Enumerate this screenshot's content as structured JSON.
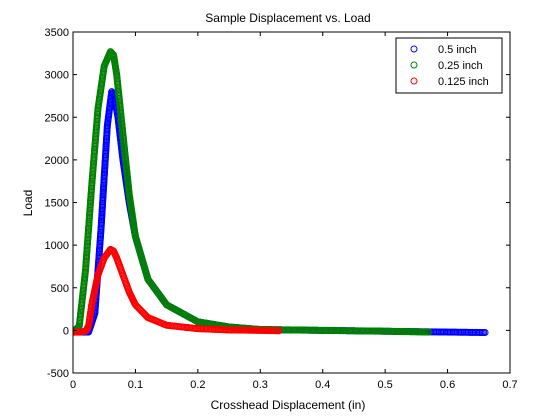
{
  "chart_data": {
    "type": "scatter",
    "title": "Sample Displacement vs. Load",
    "xlabel": "Crosshead Displacement (in)",
    "ylabel": "Load",
    "xlim": [
      0,
      0.7
    ],
    "ylim": [
      -500,
      3500
    ],
    "xticks": [
      "0",
      "0.1",
      "0.2",
      "0.3",
      "0.4",
      "0.5",
      "0.6",
      "0.7"
    ],
    "yticks": [
      "-500",
      "0",
      "500",
      "1000",
      "1500",
      "2000",
      "2500",
      "3000",
      "3500"
    ],
    "xtick_values": [
      0,
      0.1,
      0.2,
      0.3,
      0.4,
      0.5,
      0.6,
      0.7
    ],
    "ytick_values": [
      -500,
      0,
      500,
      1000,
      1500,
      2000,
      2500,
      3000,
      3500
    ],
    "grid": false,
    "legend": "top-right",
    "series": [
      {
        "name": "0.5 inch",
        "color": "#0000ff",
        "marker": "open-circle",
        "x": [
          0.0,
          0.025,
          0.035,
          0.045,
          0.055,
          0.062,
          0.066,
          0.072,
          0.08,
          0.09,
          0.1,
          0.12,
          0.15,
          0.2,
          0.25,
          0.3,
          0.4,
          0.5,
          0.6,
          0.66
        ],
        "y": [
          -20,
          -20,
          200,
          1200,
          2400,
          2800,
          2750,
          2500,
          2000,
          1500,
          1100,
          600,
          300,
          100,
          40,
          10,
          0,
          -10,
          -20,
          -25
        ]
      },
      {
        "name": "0.25 inch",
        "color": "#008000",
        "marker": "open-circle",
        "x": [
          0.0,
          0.01,
          0.02,
          0.03,
          0.04,
          0.05,
          0.06,
          0.065,
          0.07,
          0.08,
          0.09,
          0.1,
          0.12,
          0.15,
          0.2,
          0.25,
          0.3,
          0.4,
          0.5,
          0.57
        ],
        "y": [
          -20,
          50,
          700,
          1700,
          2600,
          3100,
          3270,
          3230,
          3000,
          2300,
          1600,
          1100,
          600,
          300,
          100,
          40,
          10,
          0,
          -10,
          -20
        ]
      },
      {
        "name": "0.125 inch",
        "color": "#ff0000",
        "marker": "open-circle",
        "x": [
          0.0,
          0.01,
          0.02,
          0.025,
          0.03,
          0.04,
          0.05,
          0.06,
          0.065,
          0.07,
          0.08,
          0.09,
          0.1,
          0.12,
          0.15,
          0.2,
          0.25,
          0.3,
          0.33
        ],
        "y": [
          -20,
          -20,
          -10,
          50,
          300,
          650,
          850,
          950,
          930,
          850,
          650,
          450,
          300,
          150,
          60,
          20,
          5,
          0,
          -5
        ]
      }
    ]
  }
}
